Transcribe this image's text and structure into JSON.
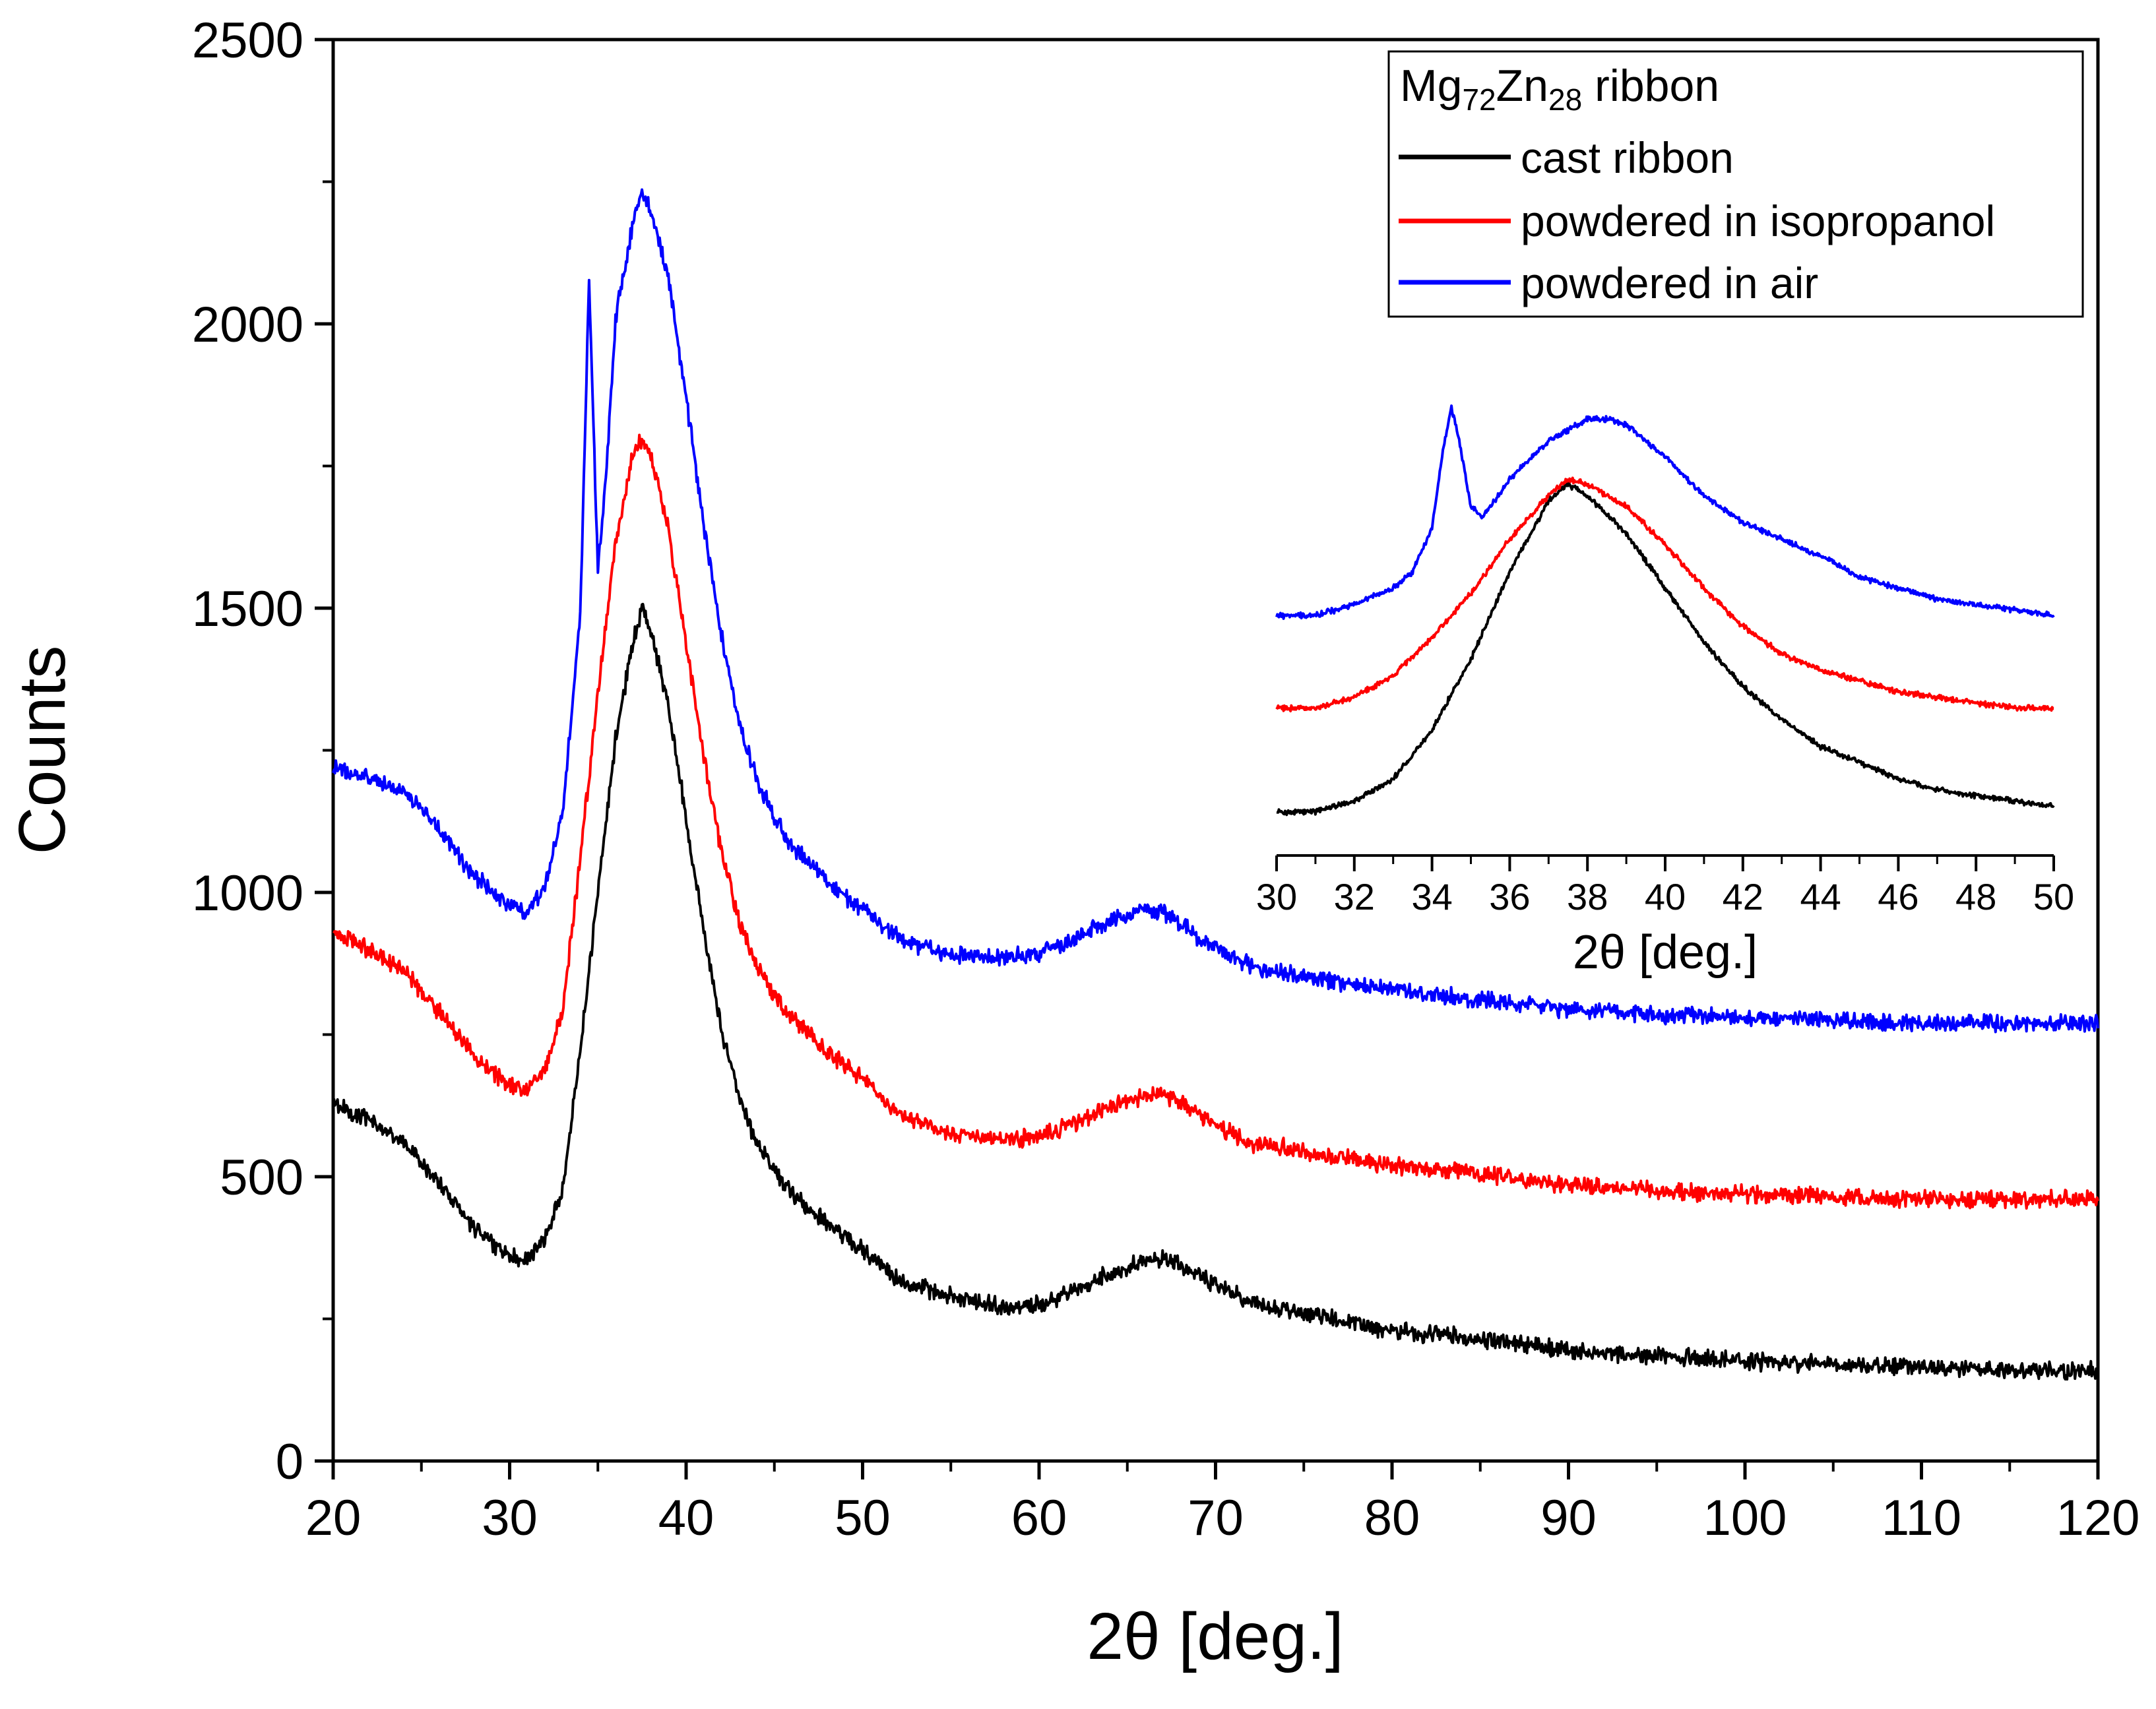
{
  "chart_data": [
    {
      "type": "line",
      "panel": "main",
      "title": "",
      "xlabel": "2θ [deg.]",
      "ylabel": "Counts",
      "xlim": [
        20,
        120
      ],
      "ylim": [
        0,
        2500
      ],
      "xticks": [
        20,
        30,
        40,
        50,
        60,
        70,
        80,
        90,
        100,
        110,
        120
      ],
      "yticks": [
        0,
        500,
        1000,
        1500,
        2000,
        2500
      ],
      "grid": false,
      "legend": {
        "placement": "top-right",
        "title_parts": [
          "Mg",
          "72",
          "Zn",
          "28",
          " ribbon"
        ],
        "entries": [
          "cast ribbon",
          "powdered in isopropanol",
          "powdered in air"
        ]
      },
      "series": [
        {
          "name": "cast ribbon",
          "color": "#000000",
          "x": [
            20,
            22,
            24,
            26,
            28,
            30,
            31,
            32,
            33,
            34,
            35,
            36,
            37,
            37.5,
            38,
            39,
            40,
            41,
            42,
            43,
            44,
            45,
            46,
            48,
            50,
            52,
            55,
            58,
            60,
            62,
            64,
            66,
            67,
            68,
            70,
            72,
            75,
            80,
            85,
            90,
            95,
            100,
            105,
            110,
            115,
            120
          ],
          "y": [
            630,
            600,
            560,
            490,
            410,
            360,
            355,
            390,
            480,
            720,
            1000,
            1270,
            1440,
            1500,
            1460,
            1330,
            1130,
            930,
            760,
            640,
            560,
            510,
            470,
            420,
            370,
            320,
            290,
            270,
            275,
            300,
            330,
            350,
            355,
            345,
            310,
            280,
            260,
            230,
            215,
            195,
            185,
            175,
            170,
            165,
            160,
            160
          ],
          "noise": 18
        },
        {
          "name": "powdered in isopropanol",
          "color": "#ff0000",
          "x": [
            20,
            22,
            24,
            26,
            28,
            30,
            31,
            32,
            33,
            34,
            35,
            36,
            37,
            37.5,
            38,
            39,
            40,
            41,
            42,
            43,
            44,
            45,
            46,
            48,
            50,
            52,
            55,
            58,
            60,
            62,
            64,
            66,
            67,
            68,
            70,
            72,
            75,
            80,
            85,
            90,
            95,
            100,
            105,
            110,
            115,
            120
          ],
          "y": [
            930,
            900,
            860,
            790,
            710,
            660,
            655,
            690,
            790,
            1060,
            1350,
            1620,
            1770,
            1800,
            1770,
            1640,
            1440,
            1240,
            1070,
            950,
            870,
            820,
            780,
            720,
            670,
            610,
            575,
            565,
            570,
            595,
            625,
            640,
            645,
            630,
            590,
            560,
            545,
            520,
            505,
            485,
            475,
            470,
            465,
            460,
            460,
            460
          ],
          "noise": 18
        },
        {
          "name": "powdered in air",
          "color": "#0000ff",
          "x": [
            20,
            22,
            24,
            26,
            28,
            30,
            31,
            32,
            33,
            34,
            34.5,
            35,
            35.5,
            36,
            37,
            37.5,
            38,
            39,
            40,
            41,
            42,
            43,
            44,
            45,
            46,
            48,
            50,
            52,
            55,
            58,
            60,
            62,
            64,
            66,
            67,
            68,
            70,
            72,
            75,
            80,
            85,
            90,
            95,
            100,
            105,
            110,
            115,
            120
          ],
          "y": [
            1220,
            1200,
            1180,
            1110,
            1030,
            975,
            965,
            1010,
            1140,
            1480,
            2080,
            1560,
            1750,
            2010,
            2180,
            2230,
            2200,
            2080,
            1870,
            1650,
            1450,
            1300,
            1200,
            1130,
            1080,
            1020,
            970,
            920,
            890,
            885,
            895,
            920,
            950,
            970,
            965,
            945,
            900,
            870,
            850,
            830,
            810,
            795,
            785,
            780,
            775,
            770,
            770,
            770
          ],
          "noise": 18
        }
      ]
    },
    {
      "type": "line",
      "panel": "inset",
      "title": "",
      "xlabel": "2θ [deg.]",
      "ylabel": "",
      "xlim": [
        30,
        50
      ],
      "xticks": [
        30,
        32,
        34,
        36,
        38,
        40,
        42,
        44,
        46,
        48,
        50
      ],
      "ylim": [
        0,
        1
      ],
      "grid": false,
      "series": [
        {
          "name": "cast ribbon",
          "color": "#000000",
          "x": [
            30,
            31,
            32,
            33,
            34,
            35,
            36,
            37,
            37.5,
            38,
            39,
            40,
            41,
            42,
            43,
            44,
            45,
            46,
            47,
            48,
            49,
            50
          ],
          "y": [
            0.08,
            0.08,
            0.1,
            0.14,
            0.23,
            0.36,
            0.52,
            0.65,
            0.68,
            0.66,
            0.59,
            0.49,
            0.39,
            0.31,
            0.25,
            0.2,
            0.17,
            0.14,
            0.12,
            0.11,
            0.1,
            0.09
          ],
          "noise": 0.006
        },
        {
          "name": "powdered in isopropanol",
          "color": "#ff0000",
          "x": [
            30,
            31,
            32,
            33,
            34,
            35,
            36,
            37,
            37.5,
            38,
            39,
            40,
            41,
            42,
            43,
            44,
            45,
            46,
            47,
            48,
            49,
            50
          ],
          "y": [
            0.27,
            0.27,
            0.29,
            0.33,
            0.4,
            0.48,
            0.58,
            0.66,
            0.69,
            0.68,
            0.64,
            0.57,
            0.49,
            0.42,
            0.37,
            0.34,
            0.32,
            0.3,
            0.29,
            0.28,
            0.27,
            0.27
          ],
          "noise": 0.006
        },
        {
          "name": "powdered in air",
          "color": "#0000ff",
          "x": [
            30,
            31,
            32,
            33,
            33.5,
            34,
            34.3,
            34.5,
            34.7,
            35,
            35.3,
            36,
            37,
            38,
            38.5,
            39,
            40,
            41,
            42,
            43,
            44,
            45,
            46,
            47,
            48,
            49,
            50
          ],
          "y": [
            0.44,
            0.44,
            0.46,
            0.49,
            0.52,
            0.6,
            0.75,
            0.82,
            0.76,
            0.64,
            0.62,
            0.69,
            0.76,
            0.8,
            0.8,
            0.79,
            0.73,
            0.66,
            0.61,
            0.58,
            0.55,
            0.51,
            0.49,
            0.47,
            0.46,
            0.45,
            0.44
          ],
          "noise": 0.006
        }
      ]
    }
  ]
}
